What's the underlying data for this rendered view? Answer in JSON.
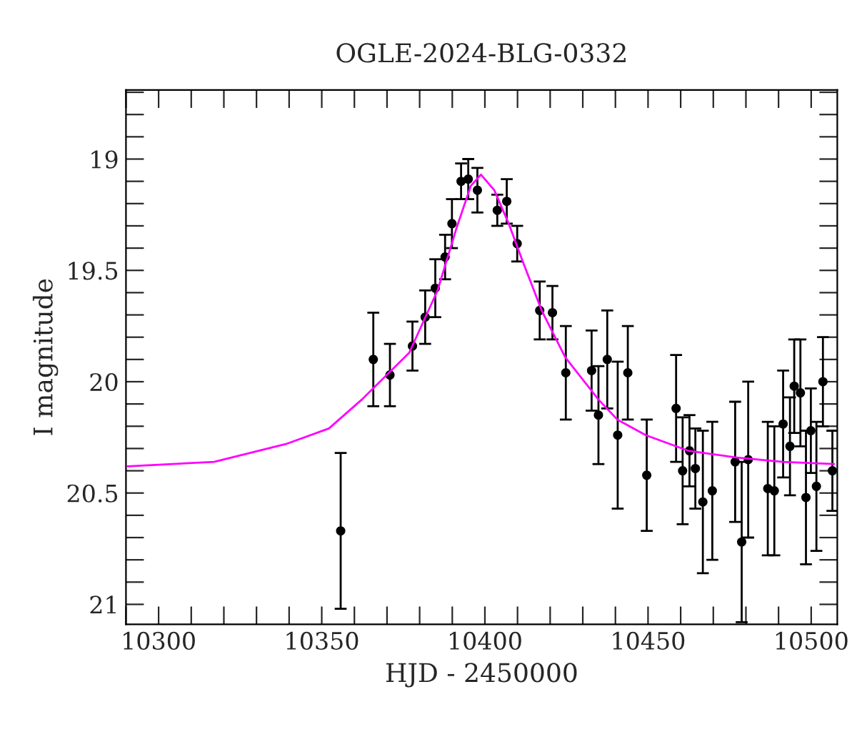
{
  "chart_data": {
    "type": "scatter",
    "title": "OGLE-2024-BLG-0332",
    "xlabel": "HJD - 2450000",
    "ylabel": "I magnitude",
    "xlim": [
      10290,
      10508
    ],
    "ylim": [
      21.09,
      18.69
    ],
    "xticks": [
      {
        "value": 10290,
        "label": null
      },
      10300,
      {
        "value": 10310,
        "label": null
      },
      {
        "value": 10320,
        "label": null
      },
      {
        "value": 10330,
        "label": null
      },
      {
        "value": 10340,
        "label": null
      },
      10350,
      {
        "value": 10360,
        "label": null
      },
      {
        "value": 10370,
        "label": null
      },
      {
        "value": 10380,
        "label": null
      },
      {
        "value": 10390,
        "label": null
      },
      10400,
      {
        "value": 10410,
        "label": null
      },
      {
        "value": 10420,
        "label": null
      },
      {
        "value": 10430,
        "label": null
      },
      {
        "value": 10440,
        "label": null
      },
      10450,
      {
        "value": 10460,
        "label": null
      },
      {
        "value": 10470,
        "label": null
      },
      {
        "value": 10480,
        "label": null
      },
      {
        "value": 10490,
        "label": null
      },
      10500
    ],
    "yticks": [
      {
        "value": 18.7,
        "label": null
      },
      {
        "value": 18.8,
        "label": null
      },
      {
        "value": 18.9,
        "label": null
      },
      19,
      {
        "value": 19.1,
        "label": null
      },
      {
        "value": 19.2,
        "label": null
      },
      {
        "value": 19.3,
        "label": null
      },
      {
        "value": 19.4,
        "label": null
      },
      19.5,
      {
        "value": 19.6,
        "label": null
      },
      {
        "value": 19.7,
        "label": null
      },
      {
        "value": 19.8,
        "label": null
      },
      {
        "value": 19.9,
        "label": null
      },
      20,
      {
        "value": 20.1,
        "label": null
      },
      {
        "value": 20.2,
        "label": null
      },
      {
        "value": 20.3,
        "label": null
      },
      {
        "value": 20.4,
        "label": null
      },
      20.5,
      {
        "value": 20.6,
        "label": null
      },
      {
        "value": 20.7,
        "label": null
      },
      {
        "value": 20.8,
        "label": null
      },
      {
        "value": 20.9,
        "label": null
      },
      21
    ],
    "grid": false,
    "legend": false,
    "marker": "circle",
    "series": [
      {
        "color": "#000000",
        "x": [
          10355.8,
          10365.8,
          10370.9,
          10377.8,
          10381.7,
          10384.8,
          10387.8,
          10389.9,
          10392.7,
          10394.9,
          10397.7,
          10403.8,
          10406.7,
          10409.9,
          10416.8,
          10420.7,
          10424.8,
          10432.7,
          10434.8,
          10437.5,
          10440.7,
          10443.8,
          10449.6,
          10458.6,
          10460.6,
          10462.7,
          10464.5,
          10466.8,
          10469.7,
          10476.7,
          10478.7,
          10480.7,
          10486.7,
          10488.7,
          10491.4,
          10493.5,
          10494.8,
          10496.7,
          10498.4,
          10499.9,
          10501.6,
          10503.6,
          10506.5
        ],
        "values": [
          20.67,
          19.9,
          19.97,
          19.84,
          19.71,
          19.58,
          19.44,
          19.29,
          19.1,
          19.09,
          19.14,
          19.23,
          19.19,
          19.38,
          19.68,
          19.69,
          19.96,
          19.95,
          20.15,
          19.9,
          20.24,
          19.96,
          20.42,
          20.12,
          20.4,
          20.31,
          20.39,
          20.54,
          20.49,
          20.36,
          20.72,
          20.35,
          20.48,
          20.49,
          20.19,
          20.29,
          20.02,
          20.05,
          20.52,
          20.22,
          20.47,
          20.0,
          20.4
        ],
        "errors": [
          0.35,
          0.21,
          0.14,
          0.11,
          0.12,
          0.13,
          0.1,
          0.11,
          0.08,
          0.09,
          0.1,
          0.07,
          0.1,
          0.08,
          0.13,
          0.12,
          0.21,
          0.18,
          0.22,
          0.22,
          0.33,
          0.21,
          0.25,
          0.24,
          0.24,
          0.16,
          0.18,
          0.32,
          0.31,
          0.27,
          0.36,
          0.35,
          0.3,
          0.29,
          0.24,
          0.22,
          0.21,
          0.24,
          0.3,
          0.19,
          0.29,
          0.2,
          0.18
        ]
      },
      {
        "type": "line",
        "color": "#ff00ff",
        "marker": "none",
        "line_style": "solid",
        "x": [
          10290.4,
          10317,
          10339,
          10352.2,
          10362.3,
          10376.8,
          10385.5,
          10391.3,
          10395.7,
          10398.8,
          10402.9,
          10407.3,
          10411.6,
          10417.4,
          10424.6,
          10434.8,
          10440.6,
          10449.3,
          10462.3,
          10476.8,
          10491.3,
          10507
        ],
        "values": [
          20.38,
          20.36,
          20.28,
          20.21,
          20.08,
          19.87,
          19.59,
          19.31,
          19.12,
          19.07,
          19.14,
          19.29,
          19.46,
          19.68,
          19.89,
          20.08,
          20.17,
          20.24,
          20.31,
          20.34,
          20.36,
          20.37
        ]
      }
    ]
  }
}
